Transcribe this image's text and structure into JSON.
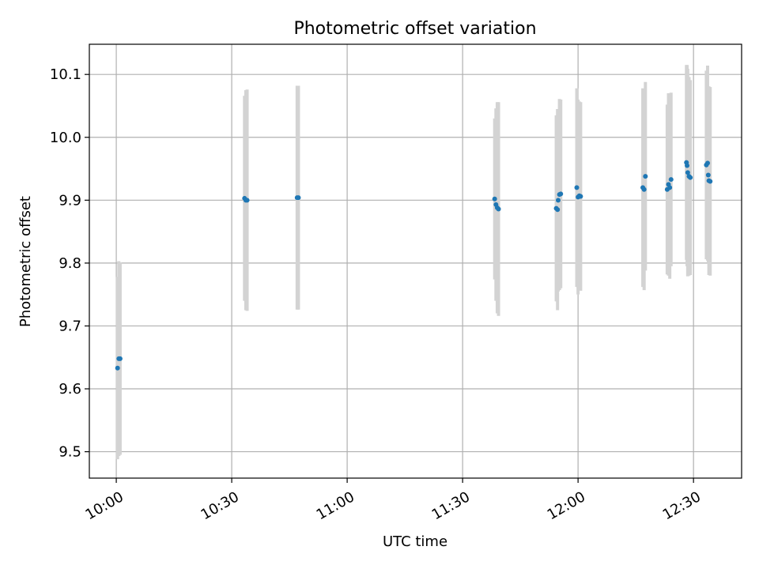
{
  "chart_data": {
    "type": "scatter",
    "title": "Photometric offset variation",
    "xlabel": "UTC time",
    "ylabel": "Photometric offset",
    "x_ticks": [
      "10:00",
      "10:30",
      "11:00",
      "11:30",
      "12:00",
      "12:30"
    ],
    "y_ticks": [
      "9.5",
      "9.6",
      "9.7",
      "9.8",
      "9.9",
      "10.0",
      "10.1"
    ],
    "xlim": [
      "09:53:00",
      "12:42:30"
    ],
    "ylim": [
      9.458,
      10.148
    ],
    "grid": true,
    "point_color": "#1f77b4",
    "errorbar_color": "#d3d3d3",
    "points": [
      {
        "time": "10:00:20",
        "y": 9.633,
        "err": 0.145
      },
      {
        "time": "10:00:40",
        "y": 9.648,
        "err": 0.155
      },
      {
        "time": "10:01:00",
        "y": 9.648,
        "err": 0.153
      },
      {
        "time": "10:33:20",
        "y": 9.903,
        "err": 0.163
      },
      {
        "time": "10:33:40",
        "y": 9.9,
        "err": 0.175
      },
      {
        "time": "10:34:00",
        "y": 9.9,
        "err": 0.176
      },
      {
        "time": "10:47:00",
        "y": 9.904,
        "err": 0.178
      },
      {
        "time": "10:47:20",
        "y": 9.904,
        "err": 0.178
      },
      {
        "time": "11:38:20",
        "y": 9.902,
        "err": 0.128
      },
      {
        "time": "11:38:40",
        "y": 9.893,
        "err": 0.153
      },
      {
        "time": "11:39:00",
        "y": 9.888,
        "err": 0.168
      },
      {
        "time": "11:39:20",
        "y": 9.886,
        "err": 0.17
      },
      {
        "time": "11:54:20",
        "y": 9.887,
        "err": 0.148
      },
      {
        "time": "11:54:40",
        "y": 9.885,
        "err": 0.16
      },
      {
        "time": "11:54:50",
        "y": 9.9,
        "err": 0.145
      },
      {
        "time": "11:55:10",
        "y": 9.909,
        "err": 0.152
      },
      {
        "time": "11:55:30",
        "y": 9.91,
        "err": 0.15
      },
      {
        "time": "11:59:40",
        "y": 9.92,
        "err": 0.158
      },
      {
        "time": "12:00:00",
        "y": 9.905,
        "err": 0.155
      },
      {
        "time": "12:00:20",
        "y": 9.907,
        "err": 0.15
      },
      {
        "time": "12:00:40",
        "y": 9.906,
        "err": 0.15
      },
      {
        "time": "12:16:50",
        "y": 9.92,
        "err": 0.158
      },
      {
        "time": "12:17:10",
        "y": 9.917,
        "err": 0.16
      },
      {
        "time": "12:17:30",
        "y": 9.938,
        "err": 0.15
      },
      {
        "time": "12:23:10",
        "y": 9.917,
        "err": 0.135
      },
      {
        "time": "12:23:30",
        "y": 9.925,
        "err": 0.145
      },
      {
        "time": "12:23:50",
        "y": 9.92,
        "err": 0.145
      },
      {
        "time": "12:24:10",
        "y": 9.933,
        "err": 0.138
      },
      {
        "time": "12:28:10",
        "y": 9.96,
        "err": 0.155
      },
      {
        "time": "12:28:20",
        "y": 9.955,
        "err": 0.16
      },
      {
        "time": "12:28:30",
        "y": 9.944,
        "err": 0.165
      },
      {
        "time": "12:28:50",
        "y": 9.938,
        "err": 0.158
      },
      {
        "time": "12:29:10",
        "y": 9.936,
        "err": 0.155
      },
      {
        "time": "12:33:20",
        "y": 9.956,
        "err": 0.15
      },
      {
        "time": "12:33:40",
        "y": 9.959,
        "err": 0.155
      },
      {
        "time": "12:33:50",
        "y": 9.94,
        "err": 0.14
      },
      {
        "time": "12:34:00",
        "y": 9.931,
        "err": 0.15
      },
      {
        "time": "12:34:20",
        "y": 9.93,
        "err": 0.15
      }
    ]
  }
}
